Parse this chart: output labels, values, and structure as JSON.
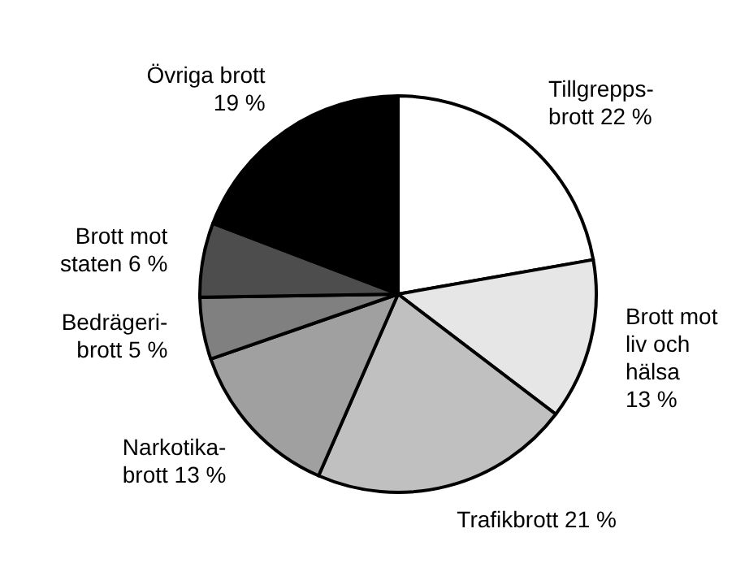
{
  "chart_data": {
    "type": "pie",
    "categories": [
      "Tillgrepps-\nbrott",
      "Brott mot\nliv och\nhälsa\n",
      "Trafikbrott",
      "Narkotika-\nbrott",
      "Bedrägeri-\nbrott",
      "Brott mot\nstaten",
      "Övriga brott\n"
    ],
    "values": [
      22,
      13,
      21,
      13,
      5,
      6,
      19
    ],
    "value_labels": [
      "22 %",
      "13 %",
      "21 %",
      "13 %",
      "5 %",
      "6 %",
      "19 %"
    ],
    "colors": [
      "#ffffff",
      "#e6e6e6",
      "#c0c0c0",
      "#a0a0a0",
      "#808080",
      "#4d4d4d",
      "#000000"
    ]
  }
}
